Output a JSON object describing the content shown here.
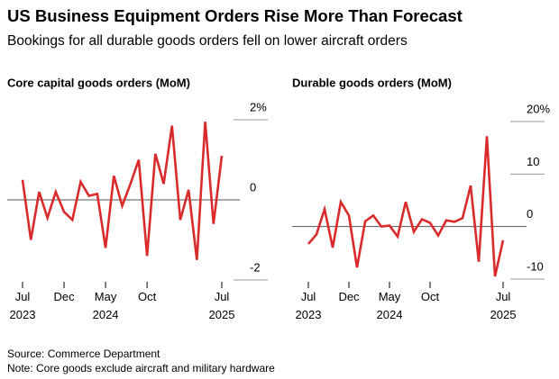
{
  "title": "US Business Equipment Orders Rise More Than Forecast",
  "subtitle": "Bookings for all durable goods orders fell on lower aircraft orders",
  "source": "Source: Commerce Department",
  "note": "Note: Core goods exclude aircraft and military hardware",
  "chart_data": [
    {
      "type": "line",
      "title": "Core capital goods orders (MoM)",
      "categories": [
        "Jul\n2023",
        null,
        null,
        null,
        null,
        "Dec",
        null,
        null,
        null,
        null,
        "May\n2024",
        null,
        null,
        null,
        null,
        "Oct",
        null,
        null,
        null,
        null,
        null,
        null,
        null,
        null,
        "Jul\n2025"
      ],
      "series": [
        {
          "name": "Core capital goods orders",
          "color": "#d92b2b",
          "values": [
            0.5,
            -1.0,
            0.2,
            -0.45,
            0.2,
            -0.3,
            -0.5,
            0.45,
            0.1,
            0.15,
            -1.2,
            0.6,
            -0.15,
            0.4,
            1.0,
            -1.4,
            1.15,
            0.4,
            1.85,
            -0.5,
            0.25,
            -1.5,
            1.95,
            -0.6,
            1.1
          ]
        }
      ],
      "ylim": [
        -2,
        2
      ],
      "yticks": [
        {
          "value": 2,
          "label": "2%"
        },
        0,
        -2
      ]
    },
    {
      "type": "line",
      "title": "Durable goods orders (MoM)",
      "categories": [
        "Jul\n2023",
        null,
        null,
        null,
        null,
        "Dec",
        null,
        null,
        null,
        null,
        "May\n2024",
        null,
        null,
        null,
        null,
        "Oct",
        null,
        null,
        null,
        null,
        null,
        null,
        null,
        null,
        "Jul\n2025"
      ],
      "series": [
        {
          "name": "Durable goods orders",
          "color": "#d92b2b",
          "values": [
            -3.3,
            -1.5,
            3.3,
            -4.0,
            4.7,
            2.1,
            -7.8,
            1.0,
            2.1,
            0,
            0.2,
            -1.9,
            4.7,
            -1.0,
            1.4,
            0.7,
            -1.7,
            1.2,
            0.9,
            1.6,
            7.8,
            -6.7,
            17.2,
            -9.5,
            -2.6
          ]
        }
      ],
      "ylim": [
        -10,
        20
      ],
      "yticks": [
        {
          "value": 20,
          "label": "20%"
        },
        10,
        0,
        -10
      ]
    }
  ]
}
